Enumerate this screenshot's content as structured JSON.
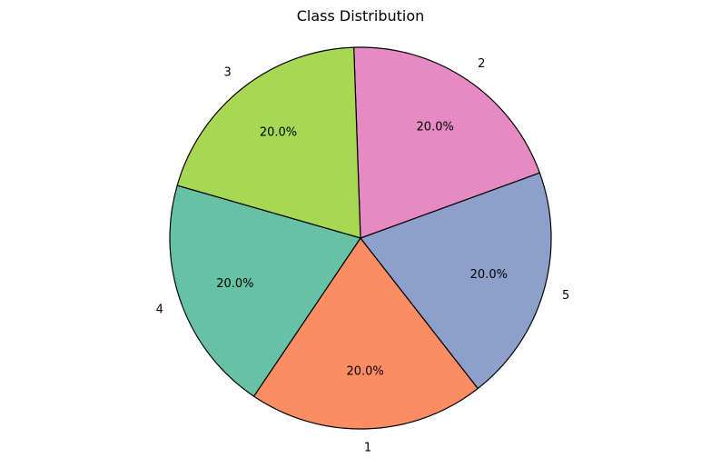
{
  "chart_data": {
    "type": "pie",
    "title": "Class Distribution",
    "categories": [
      "1",
      "5",
      "2",
      "3",
      "4"
    ],
    "values": [
      20.0,
      20.0,
      20.0,
      20.0,
      20.0
    ],
    "percent_labels": [
      "20.0%",
      "20.0%",
      "20.0%",
      "20.0%",
      "20.0%"
    ],
    "colors": [
      "#fc8d62",
      "#8da0cb",
      "#e78ac3",
      "#a6d854",
      "#66c2a5"
    ],
    "edge_color": "#000000",
    "legend": "none"
  }
}
